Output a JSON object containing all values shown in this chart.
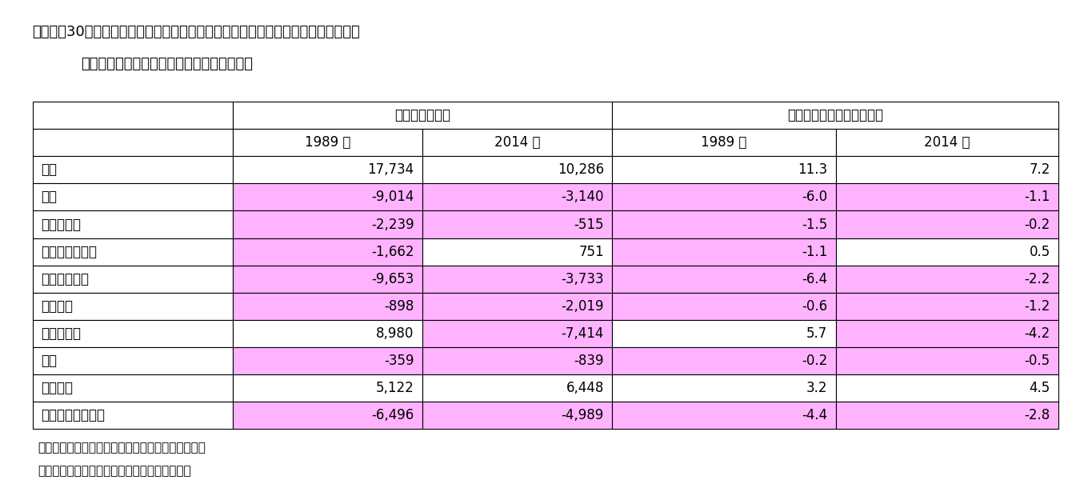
{
  "title_line1": "図表４　30歳未満の単身勤労者世帯の消費支出額と消費支出に占める割合の男女差",
  "title_line2": "（男性の値から女性の値を差し引いたもの）",
  "col_headers_span1": "消費支出額の差",
  "col_headers_span2": "消費支出に占める割合の差",
  "col_headers": [
    "1989 年",
    "2014 年",
    "1989 年",
    "2014 年"
  ],
  "row_labels": [
    "食料",
    "住居",
    "光熱・水道",
    "家具・家事用品",
    "被服及び履物",
    "保健医療",
    "交通・通信",
    "教育",
    "教養娯楽",
    "その他の消費支出"
  ],
  "data": [
    [
      "17,734",
      "10,286",
      "11.3",
      "7.2"
    ],
    [
      "-9,014",
      "-3,140",
      "-6.0",
      "-1.1"
    ],
    [
      "-2,239",
      "-515",
      "-1.5",
      "-0.2"
    ],
    [
      "-1,662",
      "751",
      "-1.1",
      "0.5"
    ],
    [
      "-9,653",
      "-3,733",
      "-6.4",
      "-2.2"
    ],
    [
      "-898",
      "-2,019",
      "-0.6",
      "-1.2"
    ],
    [
      "8,980",
      "-7,414",
      "5.7",
      "-4.2"
    ],
    [
      "-359",
      "-839",
      "-0.2",
      "-0.5"
    ],
    [
      "5,122",
      "6,448",
      "3.2",
      "4.5"
    ],
    [
      "-6,496",
      "-4,989",
      "-4.4",
      "-2.8"
    ]
  ],
  "highlight_color": "#FFB3FF",
  "note_line1": "（注）男性の値を女性の値が上回るものに網掛け。",
  "note_line2": "（資料）総務省「全国消費実態調査」から作成",
  "bg_color": "#FFFFFF",
  "border_color": "#000000",
  "text_color": "#000000",
  "title_fontsize": 13,
  "cell_fontsize": 12,
  "note_fontsize": 11
}
